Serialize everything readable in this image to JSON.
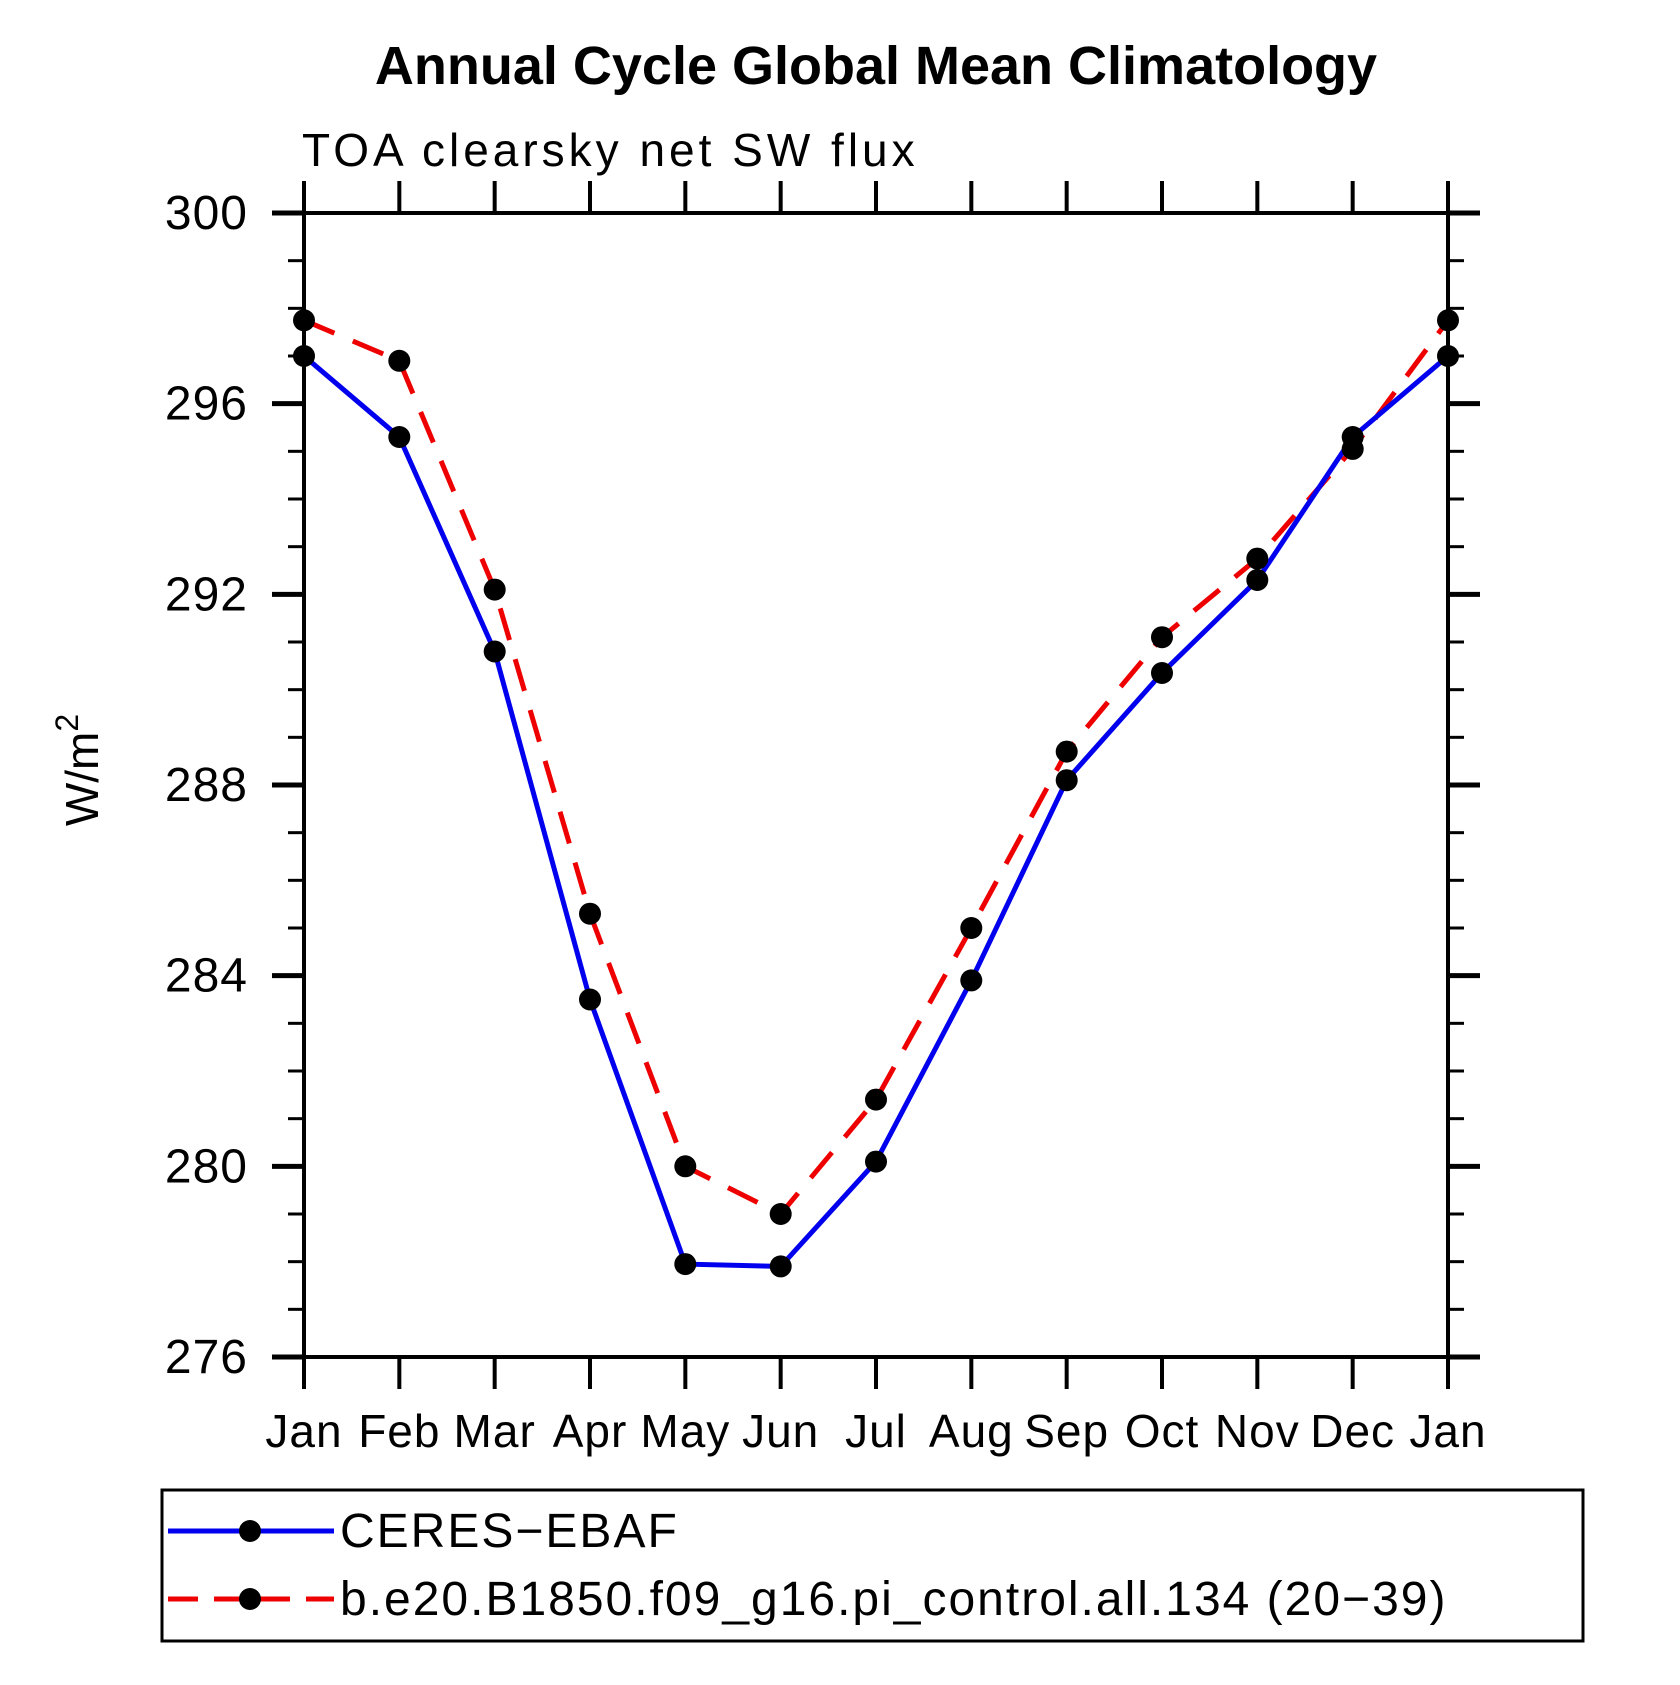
{
  "chart_data": {
    "type": "line",
    "title": "Annual Cycle Global Mean Climatology",
    "subtitle": "TOA clearsky net SW flux",
    "ylabel": {
      "text": "W/m",
      "sup": "2"
    },
    "categories": [
      "Jan",
      "Feb",
      "Mar",
      "Apr",
      "May",
      "Jun",
      "Jul",
      "Aug",
      "Sep",
      "Oct",
      "Nov",
      "Dec",
      "Jan"
    ],
    "ylim": [
      276,
      300
    ],
    "ytick_major_step": 4,
    "ytick_minor_step": 1,
    "ytick_labels": [
      "276",
      "280",
      "284",
      "288",
      "292",
      "296",
      "300"
    ],
    "grid": false,
    "legend_position": "bottom",
    "background_color": "#ffffff",
    "axis_color": "#000000",
    "marker_color": "#000000",
    "series": [
      {
        "name": "CERES−EBAF",
        "color": "#0000ee",
        "style": "solid",
        "marker": "circle",
        "values": [
          297.0,
          295.3,
          290.8,
          283.5,
          277.95,
          277.9,
          280.1,
          283.9,
          288.1,
          290.35,
          292.3,
          295.3,
          297.0
        ]
      },
      {
        "name": "b.e20.B1850.f09_g16.pi_control.all.134 (20−39)",
        "color": "#ee0000",
        "style": "dashed",
        "marker": "circle",
        "values": [
          297.75,
          296.9,
          292.1,
          285.3,
          280.0,
          279.0,
          281.4,
          285.0,
          288.7,
          291.1,
          292.75,
          295.05,
          297.75
        ]
      }
    ]
  }
}
